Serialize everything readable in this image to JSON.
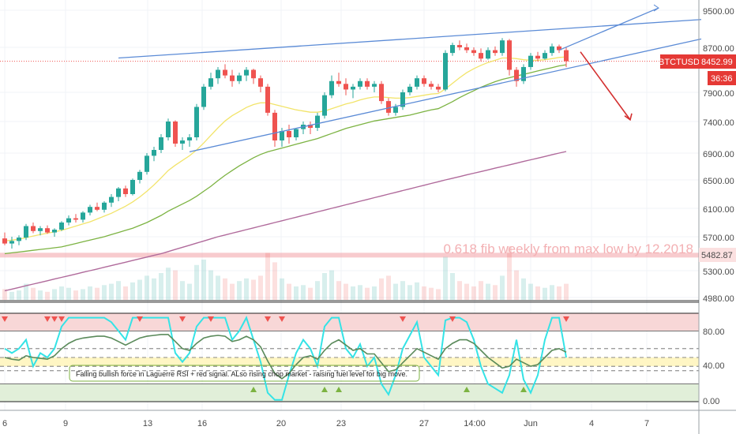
{
  "chart_data": {
    "type": "line",
    "symbol": "BTCTUSD",
    "price_panel": {
      "y_ticks": [
        "9500.00",
        "8700.00",
        "7900.00",
        "7400.00",
        "6900.00",
        "6500.00",
        "6100.00",
        "5700.00",
        "5300.00",
        "4980.00"
      ],
      "last_price_label": "8452.99",
      "countdown_label": "36:36",
      "fib_level_label": "5482.87",
      "fib_level": 5482.87,
      "annotation": "0.618 fib weekly from max low by 12.2018",
      "last_price": 8452.99
    },
    "rsi_panel": {
      "y_ticks": [
        "80.00",
        "40.00",
        "0.00"
      ],
      "note": "Falling bullish force in Laguerre RSI + red signal. ALso rising chop market - raising fuel level for big move."
    },
    "x_tick_labels": [
      "6",
      "9",
      "13",
      "16",
      "20",
      "23",
      "27",
      "14:00",
      "Jun",
      "4",
      "7"
    ],
    "candles": [
      [
        5680,
        5760,
        5600,
        5620
      ],
      [
        5620,
        5700,
        5560,
        5650
      ],
      [
        5650,
        5720,
        5600,
        5690
      ],
      [
        5690,
        5880,
        5660,
        5850
      ],
      [
        5850,
        5900,
        5750,
        5780
      ],
      [
        5780,
        5850,
        5720,
        5820
      ],
      [
        5820,
        5860,
        5740,
        5760
      ],
      [
        5760,
        5820,
        5700,
        5800
      ],
      [
        5800,
        5920,
        5780,
        5900
      ],
      [
        5900,
        6000,
        5860,
        5960
      ],
      [
        5960,
        6020,
        5900,
        5940
      ],
      [
        5940,
        6060,
        5900,
        6040
      ],
      [
        6040,
        6150,
        6000,
        6120
      ],
      [
        6120,
        6180,
        6060,
        6080
      ],
      [
        6080,
        6200,
        6040,
        6180
      ],
      [
        6180,
        6300,
        6120,
        6260
      ],
      [
        6260,
        6400,
        6200,
        6380
      ],
      [
        6380,
        6420,
        6260,
        6300
      ],
      [
        6300,
        6520,
        6280,
        6500
      ],
      [
        6500,
        6650,
        6450,
        6620
      ],
      [
        6620,
        6900,
        6580,
        6860
      ],
      [
        6860,
        7000,
        6780,
        6950
      ],
      [
        6950,
        7200,
        6900,
        7150
      ],
      [
        7150,
        7450,
        7100,
        7400
      ],
      [
        7400,
        7420,
        7000,
        7050
      ],
      [
        7050,
        7150,
        6950,
        7100
      ],
      [
        7100,
        7200,
        7000,
        7150
      ],
      [
        7150,
        7700,
        7100,
        7650
      ],
      [
        7650,
        8050,
        7600,
        8000
      ],
      [
        8000,
        8250,
        7950,
        8150
      ],
      [
        8150,
        8350,
        8050,
        8300
      ],
      [
        8300,
        8400,
        8150,
        8200
      ],
      [
        8200,
        8300,
        8000,
        8100
      ],
      [
        8100,
        8250,
        8050,
        8200
      ],
      [
        8200,
        8350,
        8100,
        8300
      ],
      [
        8300,
        8320,
        8050,
        8150
      ],
      [
        8150,
        8200,
        7900,
        8000
      ],
      [
        8000,
        8050,
        7500,
        7550
      ],
      [
        7550,
        7600,
        7000,
        7100
      ],
      [
        7100,
        7300,
        7000,
        7250
      ],
      [
        7250,
        7350,
        7050,
        7150
      ],
      [
        7150,
        7300,
        7100,
        7280
      ],
      [
        7280,
        7400,
        7200,
        7350
      ],
      [
        7350,
        7400,
        7200,
        7300
      ],
      [
        7300,
        7550,
        7250,
        7500
      ],
      [
        7500,
        7900,
        7450,
        7850
      ],
      [
        7850,
        8200,
        7800,
        8100
      ],
      [
        8100,
        8250,
        8000,
        8050
      ],
      [
        8050,
        8150,
        7850,
        7950
      ],
      [
        7950,
        8050,
        7800,
        8000
      ],
      [
        8000,
        8150,
        7950,
        8100
      ],
      [
        8100,
        8150,
        7950,
        8000
      ],
      [
        8000,
        8100,
        7900,
        8050
      ],
      [
        8050,
        8100,
        7700,
        7750
      ],
      [
        7750,
        7800,
        7500,
        7550
      ],
      [
        7550,
        7700,
        7500,
        7650
      ],
      [
        7650,
        7950,
        7600,
        7900
      ],
      [
        7900,
        8050,
        7850,
        8000
      ],
      [
        8000,
        8200,
        7950,
        8150
      ],
      [
        8150,
        8200,
        8000,
        8050
      ],
      [
        8050,
        8100,
        7950,
        8000
      ],
      [
        8000,
        8050,
        7900,
        7950
      ],
      [
        7950,
        8650,
        7920,
        8600
      ],
      [
        8600,
        8800,
        8550,
        8750
      ],
      [
        8750,
        8850,
        8650,
        8700
      ],
      [
        8700,
        8780,
        8600,
        8650
      ],
      [
        8650,
        8700,
        8550,
        8600
      ],
      [
        8600,
        8680,
        8450,
        8500
      ],
      [
        8500,
        8700,
        8480,
        8650
      ],
      [
        8650,
        8720,
        8550,
        8600
      ],
      [
        8600,
        8900,
        8550,
        8850
      ],
      [
        8850,
        8880,
        8200,
        8300
      ],
      [
        8300,
        8350,
        8000,
        8100
      ],
      [
        8100,
        8400,
        8050,
        8350
      ],
      [
        8350,
        8600,
        8300,
        8550
      ],
      [
        8550,
        8620,
        8450,
        8500
      ],
      [
        8500,
        8650,
        8480,
        8600
      ],
      [
        8600,
        8780,
        8550,
        8720
      ],
      [
        8720,
        8760,
        8600,
        8650
      ],
      [
        8650,
        8700,
        8350,
        8453
      ]
    ],
    "ma_fast": [
      5650,
      5660,
      5670,
      5690,
      5710,
      5730,
      5750,
      5770,
      5790,
      5820,
      5850,
      5880,
      5910,
      5950,
      5990,
      6030,
      6080,
      6130,
      6190,
      6260,
      6340,
      6430,
      6530,
      6640,
      6720,
      6790,
      6860,
      6950,
      7060,
      7180,
      7300,
      7410,
      7500,
      7570,
      7640,
      7690,
      7720,
      7720,
      7690,
      7660,
      7630,
      7600,
      7580,
      7560,
      7560,
      7580,
      7620,
      7660,
      7700,
      7730,
      7770,
      7800,
      7820,
      7820,
      7810,
      7800,
      7800,
      7810,
      7830,
      7850,
      7870,
      7880,
      7960,
      8060,
      8160,
      8250,
      8320,
      8380,
      8430,
      8470,
      8510,
      8510,
      8500,
      8480,
      8470,
      8470,
      8480,
      8500,
      8520,
      8530
    ],
    "ma_slow": [
      5500,
      5510,
      5520,
      5530,
      5540,
      5550,
      5560,
      5570,
      5580,
      5600,
      5620,
      5640,
      5660,
      5680,
      5700,
      5730,
      5760,
      5790,
      5820,
      5860,
      5900,
      5950,
      6000,
      6060,
      6110,
      6160,
      6210,
      6270,
      6340,
      6410,
      6490,
      6570,
      6640,
      6710,
      6770,
      6830,
      6880,
      6920,
      6950,
      6980,
      7010,
      7040,
      7070,
      7100,
      7130,
      7170,
      7210,
      7250,
      7290,
      7320,
      7350,
      7380,
      7410,
      7430,
      7450,
      7470,
      7490,
      7510,
      7540,
      7570,
      7600,
      7620,
      7680,
      7740,
      7810,
      7870,
      7930,
      7990,
      8040,
      8090,
      8130,
      8160,
      8190,
      8220,
      8250,
      8280,
      8310,
      8340,
      8370,
      8390
    ],
    "ma_long": [
      5060,
      5080,
      5100,
      5120,
      5140,
      5160,
      5180,
      5200,
      5220,
      5240,
      5260,
      5280,
      5300,
      5320,
      5340,
      5360,
      5380,
      5400,
      5420,
      5440,
      5460,
      5480,
      5500,
      5525,
      5550,
      5575,
      5600,
      5625,
      5650,
      5675,
      5700,
      5725,
      5750,
      5775,
      5800,
      5825,
      5850,
      5875,
      5900,
      5925,
      5950,
      5975,
      6000,
      6025,
      6050,
      6075,
      6100,
      6125,
      6150,
      6175,
      6200,
      6225,
      6250,
      6275,
      6300,
      6325,
      6350,
      6375,
      6400,
      6425,
      6450,
      6475,
      6500,
      6525,
      6550,
      6575,
      6600,
      6625,
      6650,
      6675,
      6700,
      6725,
      6750,
      6775,
      6800,
      6825,
      6850,
      6875,
      6900,
      6925
    ],
    "volume": [
      8,
      6,
      7,
      12,
      9,
      7,
      6,
      8,
      10,
      9,
      7,
      8,
      10,
      9,
      11,
      12,
      14,
      10,
      13,
      15,
      18,
      16,
      20,
      24,
      22,
      14,
      12,
      26,
      30,
      22,
      18,
      16,
      12,
      14,
      16,
      15,
      18,
      35,
      28,
      16,
      12,
      10,
      11,
      9,
      14,
      20,
      22,
      14,
      12,
      10,
      11,
      9,
      10,
      16,
      18,
      12,
      14,
      11,
      13,
      10,
      9,
      8,
      32,
      20,
      14,
      12,
      10,
      14,
      12,
      11,
      18,
      40,
      22,
      16,
      12,
      10,
      9,
      11,
      10,
      12
    ],
    "rsi_fast": [
      60,
      55,
      60,
      70,
      40,
      55,
      50,
      60,
      85,
      95,
      95,
      95,
      95,
      95,
      95,
      90,
      80,
      70,
      95,
      95,
      95,
      95,
      95,
      95,
      55,
      45,
      55,
      85,
      95,
      95,
      95,
      95,
      70,
      80,
      95,
      70,
      45,
      10,
      2,
      2,
      30,
      55,
      70,
      60,
      40,
      85,
      95,
      95,
      60,
      50,
      65,
      40,
      50,
      20,
      8,
      30,
      60,
      75,
      90,
      50,
      40,
      30,
      92,
      95,
      95,
      90,
      70,
      40,
      20,
      15,
      10,
      30,
      70,
      25,
      10,
      30,
      70,
      95,
      95,
      50
    ],
    "rsi_slow": [
      50,
      48,
      47,
      52,
      50,
      49,
      48,
      52,
      60,
      66,
      70,
      72,
      73,
      74,
      74,
      72,
      68,
      64,
      68,
      72,
      74,
      75,
      76,
      76,
      68,
      60,
      58,
      66,
      72,
      74,
      75,
      74,
      68,
      70,
      74,
      70,
      62,
      46,
      32,
      26,
      32,
      42,
      50,
      52,
      48,
      58,
      66,
      70,
      64,
      58,
      60,
      54,
      54,
      44,
      34,
      36,
      44,
      52,
      60,
      56,
      52,
      48,
      60,
      66,
      70,
      70,
      66,
      58,
      50,
      44,
      38,
      40,
      48,
      44,
      40,
      42,
      50,
      58,
      60,
      56
    ],
    "triangle_upper": {
      "from": [
        16,
        8510
      ],
      "to": [
        98,
        9300
      ]
    },
    "triangle_lower": {
      "from": [
        26,
        6920
      ],
      "to": [
        98,
        8880
      ]
    },
    "extension_line": {
      "from": [
        78,
        8650
      ],
      "to": [
        92,
        9550
      ]
    },
    "projection_arrow": {
      "from": [
        81,
        8620
      ],
      "to": [
        88,
        7430
      ]
    }
  },
  "colors": {
    "bull": "#26a69a",
    "bear": "#ef5350",
    "ma_fast": "#f2e46a",
    "ma_slow": "#7cb342",
    "ma_long": "#b06a9b",
    "trendline": "#5b8bd6",
    "rsi_fast": "#34e3e6",
    "rsi_slow": "#5a8a5a",
    "zone_red": "#f8d7d7",
    "zone_yellow": "#fff6c4",
    "zone_green": "#e1efd9",
    "fib_line": "#f3a9ad",
    "price_tag": "#e53935"
  }
}
